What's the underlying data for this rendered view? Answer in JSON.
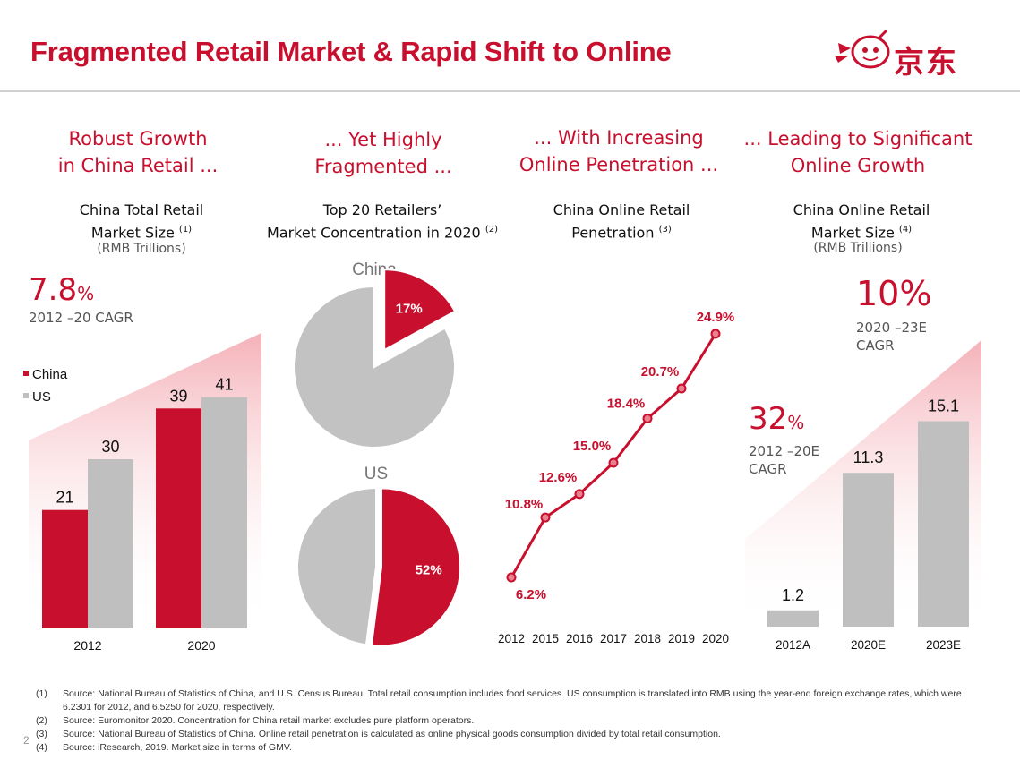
{
  "title": "Fragmented Retail Market & Rapid Shift to Online",
  "logo_text": "京东",
  "columns": [
    {
      "headline": [
        "Robust Growth",
        "in China Retail ..."
      ],
      "subtitle": [
        "China Total Retail",
        "Market Size"
      ],
      "note": "(1)",
      "units": "(RMB Trillions)"
    },
    {
      "headline": [
        "... Yet Highly",
        "Fragmented ..."
      ],
      "subtitle": [
        "Top 20 Retailers’",
        "Market Concentration in 2020"
      ],
      "note": "(2)"
    },
    {
      "headline": [
        "... With Increasing",
        "Online Penetration ..."
      ],
      "subtitle": [
        "China Online Retail",
        "Penetration"
      ],
      "note": "(3)"
    },
    {
      "headline": [
        "... Leading to Significant",
        "Online Growth"
      ],
      "subtitle": [
        "China Online Retail",
        "Market Size"
      ],
      "note": "(4)",
      "units": "(RMB Trillions)"
    }
  ],
  "callouts": {
    "retail_cagr_value": "7.8",
    "retail_cagr_label": "2012 –20 CAGR",
    "online_cagr_value": "10",
    "online_cagr_label": [
      "2020 –23E",
      "CAGR"
    ],
    "online_hist_cagr_value": "32",
    "online_hist_cagr_label": [
      "2012 –20E",
      "CAGR"
    ],
    "pct_sign": "%"
  },
  "chart_data": [
    {
      "type": "bar",
      "categories": [
        "2012",
        "2020"
      ],
      "series": [
        {
          "name": "China",
          "values": [
            21,
            39
          ],
          "color": "#c8102e"
        },
        {
          "name": "US",
          "values": [
            30,
            41
          ],
          "color": "#bfbfbf"
        }
      ]
    },
    {
      "type": "pie",
      "title": "China",
      "slices": [
        {
          "label": "17%",
          "value": 17,
          "color": "#c8102e"
        },
        {
          "label": "",
          "value": 83,
          "color": "#c2c2c2"
        }
      ]
    },
    {
      "type": "pie",
      "title": "US",
      "slices": [
        {
          "label": "52%",
          "value": 52,
          "color": "#c8102e"
        },
        {
          "label": "",
          "value": 48,
          "color": "#c2c2c2"
        }
      ]
    },
    {
      "type": "line",
      "x": [
        "2012",
        "2015",
        "2016",
        "2017",
        "2018",
        "2019",
        "2020"
      ],
      "values": [
        6.2,
        10.8,
        12.6,
        15.0,
        18.4,
        20.7,
        24.9
      ],
      "labels": [
        "6.2%",
        "10.8%",
        "12.6%",
        "15.0%",
        "18.4%",
        "20.7%",
        "24.9%"
      ],
      "color": "#c8102e"
    },
    {
      "type": "bar",
      "categories": [
        "2012A",
        "2020E",
        "2023E"
      ],
      "values": [
        1.2,
        11.3,
        15.1
      ],
      "labels": [
        "1.2",
        "11.3",
        "15.1"
      ],
      "color": "#bfbfbf"
    }
  ],
  "footnotes": [
    {
      "num": "(1)",
      "text": "Source: National Bureau of Statistics of China, and U.S. Census Bureau. Total retail consumption includes food services. US consumption is translated into RMB using the year-end foreign exchange rates, which were 6.2301 for 2012, and 6.5250 for 2020, respectively."
    },
    {
      "num": "(2)",
      "text": "Source: Euromonitor 2020. Concentration for China retail market excludes pure platform operators."
    },
    {
      "num": "(3)",
      "text": "Source: National Bureau of Statistics of China. Online retail penetration is calculated as online physical goods consumption divided by total retail consumption."
    },
    {
      "num": "(4)",
      "text": "Source: iResearch, 2019. Market size in terms of GMV."
    }
  ],
  "page_number": "2"
}
